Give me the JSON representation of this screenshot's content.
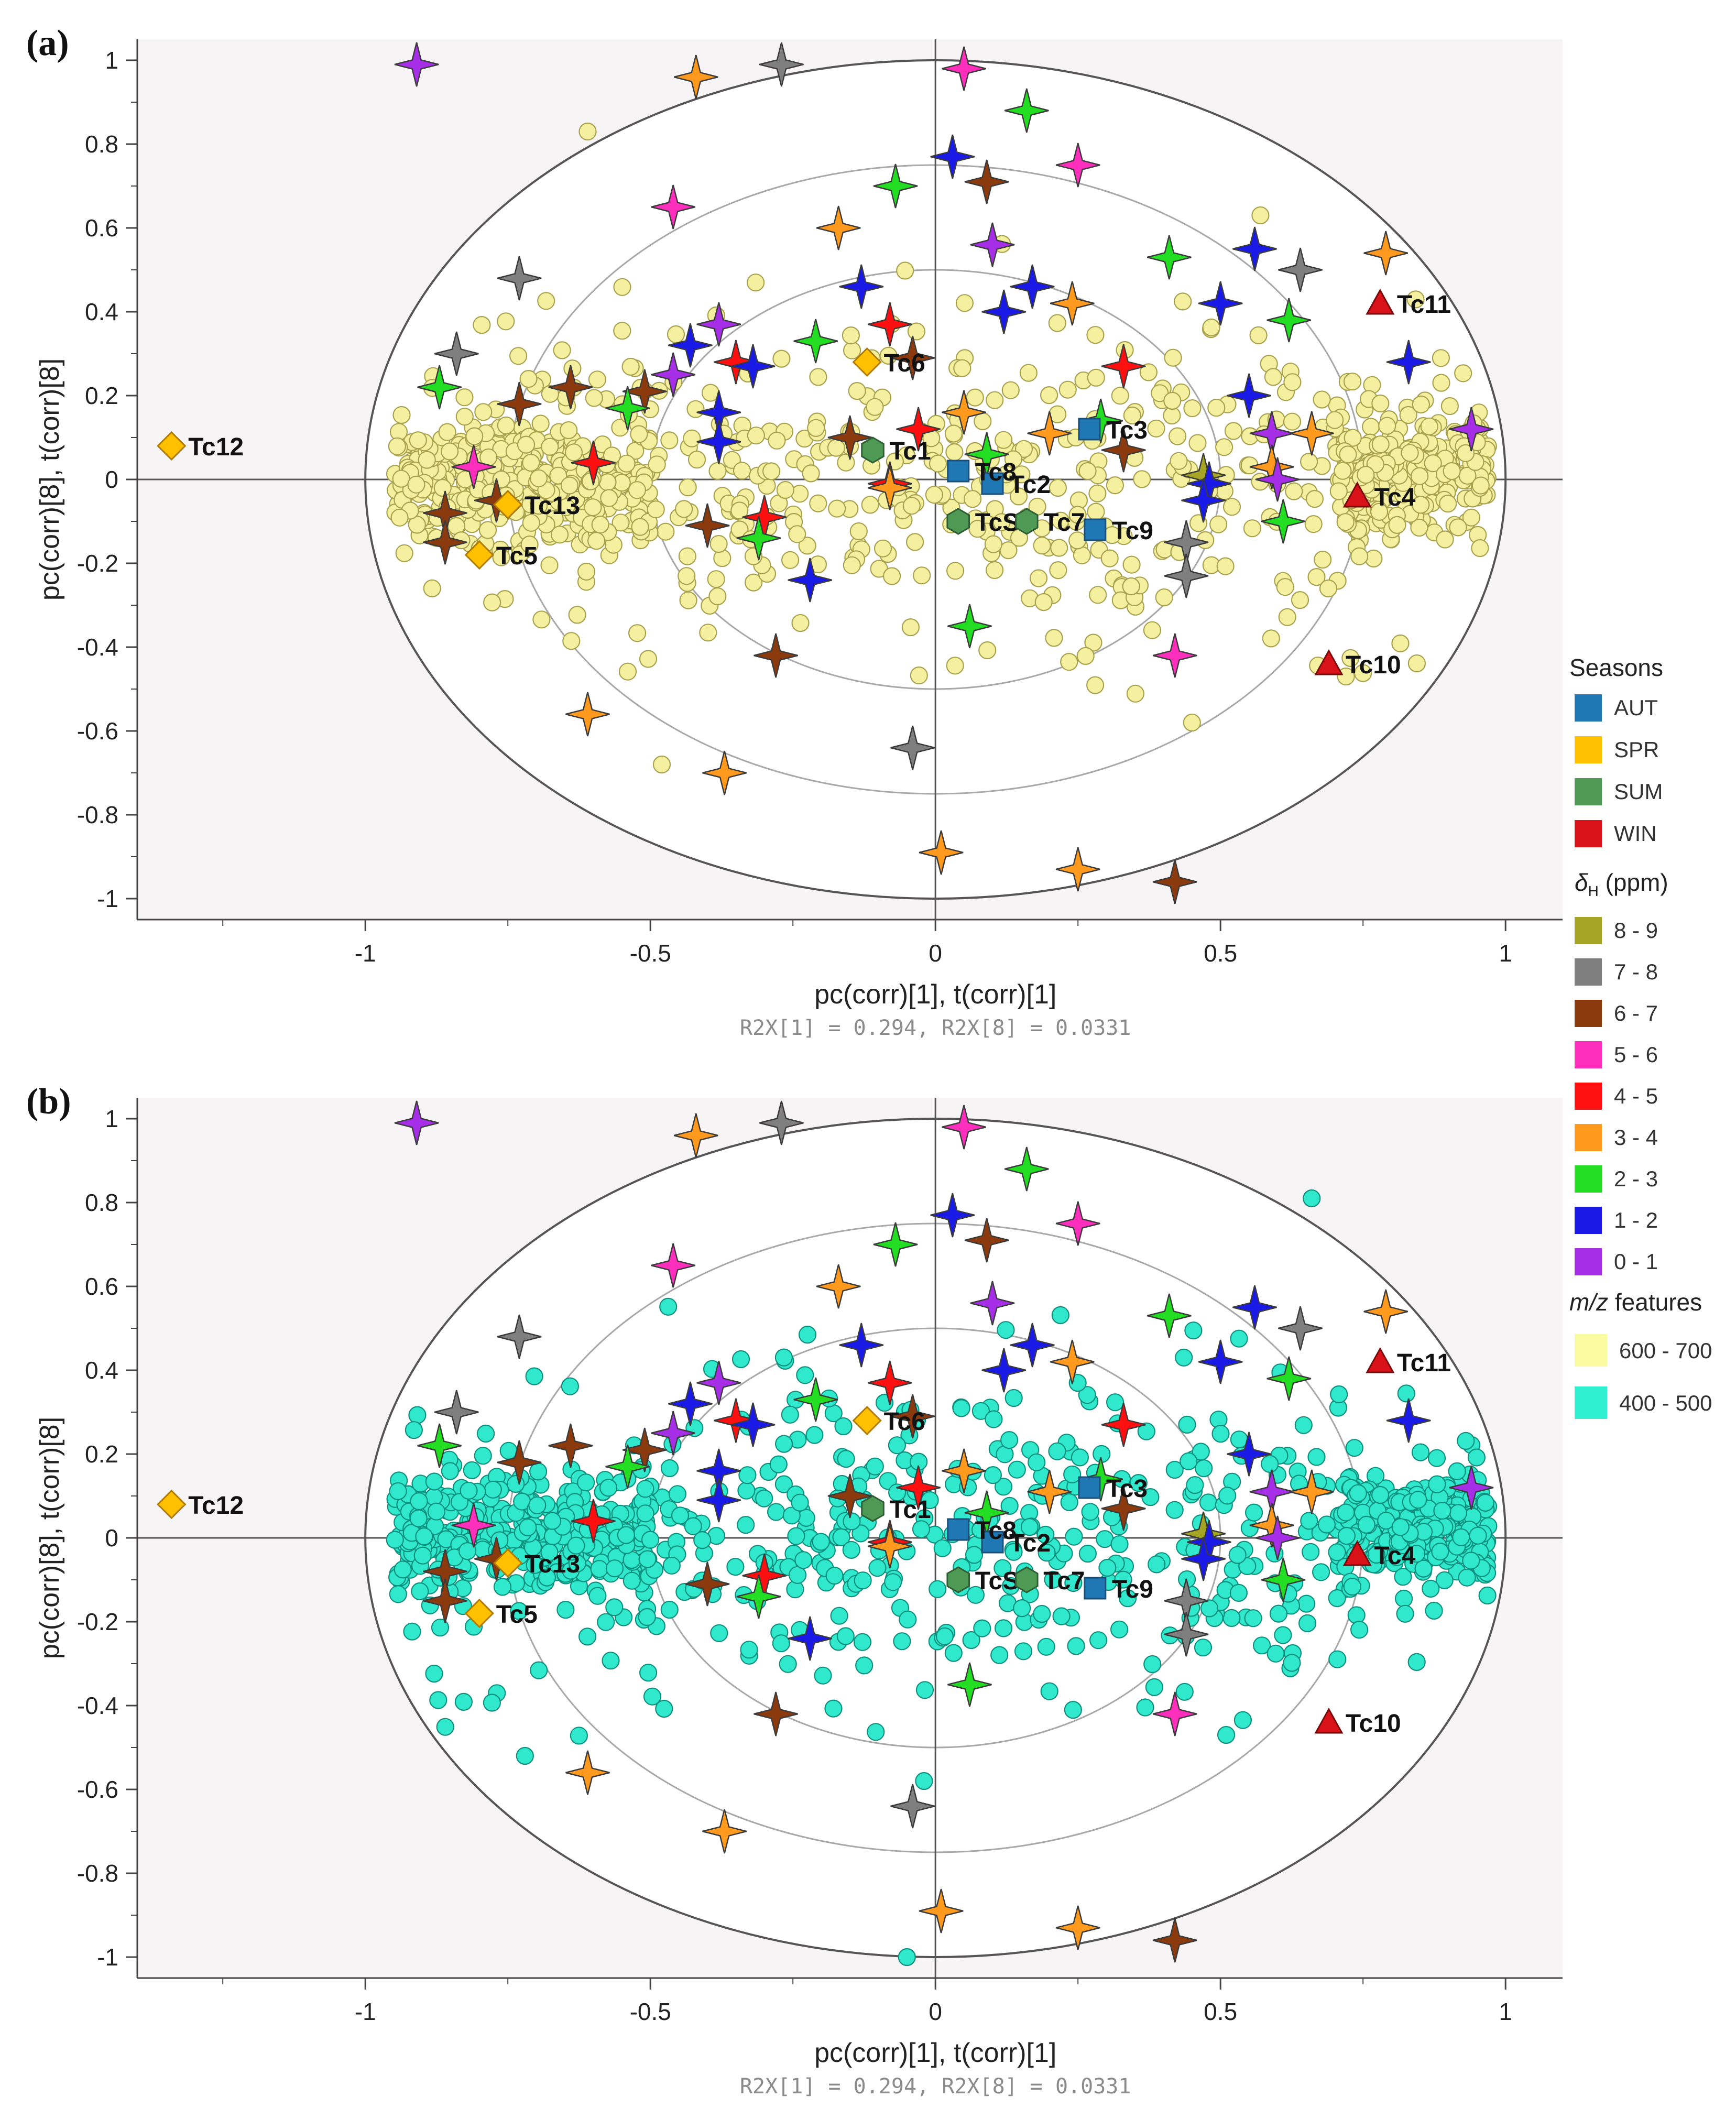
{
  "chart_data": {
    "type": "scatter",
    "title": "",
    "panels": [
      {
        "letter": "(a)",
        "xlabel": "pc(corr)[1], t(corr)[1]",
        "ylabel": "pc(corr)[8], t(corr)[8]",
        "r2x": "R2X[1] = 0.294, R2X[8] = 0.0331",
        "feature_group": "600 - 700",
        "feature_distribution": {
          "x_range": [
            -0.95,
            0.97
          ],
          "y_range": [
            -0.62,
            0.83
          ],
          "note": "dense band near y = 0, concentrated at x < -0.5 and x > 0.7"
        }
      },
      {
        "letter": "(b)",
        "xlabel": "pc(corr)[1], t(corr)[1]",
        "ylabel": "pc(corr)[8], t(corr)[8]",
        "r2x": "R2X[1] = 0.294, R2X[8] = 0.0331",
        "feature_group": "400 - 500",
        "feature_distribution": {
          "x_range": [
            -0.95,
            0.97
          ],
          "y_range": [
            -1.0,
            0.81
          ],
          "note": "dense band near y = 0, concentrated at x < -0.5 and x > 0.7"
        }
      }
    ],
    "xlim": [
      -1.4,
      1.1
    ],
    "ylim": [
      -1.05,
      1.05
    ],
    "xticks": [
      "-1",
      "-0.5",
      "0",
      "0.5",
      "1"
    ],
    "yticks": [
      "1",
      "0.8",
      "0.6",
      "0.4",
      "0.2",
      "0",
      "-0.2",
      "-0.4",
      "-0.6",
      "-0.8",
      "-1"
    ],
    "correlation_circles": [
      1.0,
      0.75,
      0.5
    ],
    "observations": [
      {
        "label": "Tc1",
        "x": -0.11,
        "y": 0.07,
        "season": "SUM"
      },
      {
        "label": "Tc2",
        "x": 0.1,
        "y": -0.01,
        "season": "AUT"
      },
      {
        "label": "Tc3",
        "x": 0.27,
        "y": 0.12,
        "season": "AUT"
      },
      {
        "label": "Tc4",
        "x": 0.74,
        "y": -0.04,
        "season": "WIN"
      },
      {
        "label": "Tc5",
        "x": -0.8,
        "y": -0.18,
        "season": "SPR"
      },
      {
        "label": "TcS",
        "x": 0.04,
        "y": -0.1,
        "season": "SUM"
      },
      {
        "label": "Tc6",
        "x": -0.12,
        "y": 0.28,
        "season": "SPR"
      },
      {
        "label": "Tc7",
        "x": 0.16,
        "y": -0.1,
        "season": "SUM"
      },
      {
        "label": "Tc8",
        "x": 0.04,
        "y": 0.02,
        "season": "AUT"
      },
      {
        "label": "Tc9",
        "x": 0.28,
        "y": -0.12,
        "season": "AUT"
      },
      {
        "label": "Tc10",
        "x": 0.69,
        "y": -0.44,
        "season": "WIN"
      },
      {
        "label": "Tc11",
        "x": 0.78,
        "y": 0.42,
        "season": "WIN"
      },
      {
        "label": "Tc12",
        "x": -1.34,
        "y": 0.08,
        "season": "SPR"
      },
      {
        "label": "Tc13",
        "x": -0.75,
        "y": -0.06,
        "season": "SPR"
      }
    ],
    "nmr_variables": [
      {
        "x": -0.91,
        "y": 0.99,
        "range": "0 - 1"
      },
      {
        "x": -0.42,
        "y": 0.96,
        "range": "3 - 4"
      },
      {
        "x": -0.27,
        "y": 0.99,
        "range": "7 - 8"
      },
      {
        "x": 0.05,
        "y": 0.98,
        "range": "5 - 6"
      },
      {
        "x": 0.16,
        "y": 0.88,
        "range": "2 - 3"
      },
      {
        "x": 0.03,
        "y": 0.77,
        "range": "1 - 2"
      },
      {
        "x": 0.09,
        "y": 0.71,
        "range": "6 - 7"
      },
      {
        "x": 0.25,
        "y": 0.75,
        "range": "5 - 6"
      },
      {
        "x": -0.07,
        "y": 0.7,
        "range": "2 - 3"
      },
      {
        "x": -0.46,
        "y": 0.65,
        "range": "5 - 6"
      },
      {
        "x": -0.17,
        "y": 0.6,
        "range": "3 - 4"
      },
      {
        "x": 0.1,
        "y": 0.56,
        "range": "0 - 1"
      },
      {
        "x": 0.41,
        "y": 0.53,
        "range": "2 - 3"
      },
      {
        "x": 0.56,
        "y": 0.55,
        "range": "1 - 2"
      },
      {
        "x": 0.64,
        "y": 0.5,
        "range": "7 - 8"
      },
      {
        "x": 0.79,
        "y": 0.54,
        "range": "3 - 4"
      },
      {
        "x": -0.73,
        "y": 0.48,
        "range": "7 - 8"
      },
      {
        "x": -0.13,
        "y": 0.46,
        "range": "1 - 2"
      },
      {
        "x": 0.17,
        "y": 0.46,
        "range": "1 - 2"
      },
      {
        "x": 0.12,
        "y": 0.4,
        "range": "1 - 2"
      },
      {
        "x": 0.24,
        "y": 0.42,
        "range": "3 - 4"
      },
      {
        "x": 0.5,
        "y": 0.42,
        "range": "1 - 2"
      },
      {
        "x": 0.62,
        "y": 0.38,
        "range": "2 - 3"
      },
      {
        "x": -0.08,
        "y": 0.37,
        "range": "4 - 5"
      },
      {
        "x": -0.38,
        "y": 0.37,
        "range": "0 - 1"
      },
      {
        "x": -0.43,
        "y": 0.32,
        "range": "1 - 2"
      },
      {
        "x": -0.21,
        "y": 0.33,
        "range": "2 - 3"
      },
      {
        "x": -0.84,
        "y": 0.3,
        "range": "7 - 8"
      },
      {
        "x": -0.04,
        "y": 0.29,
        "range": "6 - 7"
      },
      {
        "x": -0.35,
        "y": 0.28,
        "range": "4 - 5"
      },
      {
        "x": -0.32,
        "y": 0.27,
        "range": "1 - 2"
      },
      {
        "x": 0.33,
        "y": 0.27,
        "range": "4 - 5"
      },
      {
        "x": -0.46,
        "y": 0.25,
        "range": "0 - 1"
      },
      {
        "x": 0.83,
        "y": 0.28,
        "range": "1 - 2"
      },
      {
        "x": -0.64,
        "y": 0.22,
        "range": "6 - 7"
      },
      {
        "x": -0.87,
        "y": 0.22,
        "range": "2 - 3"
      },
      {
        "x": -0.51,
        "y": 0.21,
        "range": "6 - 7"
      },
      {
        "x": 0.55,
        "y": 0.2,
        "range": "1 - 2"
      },
      {
        "x": -0.73,
        "y": 0.18,
        "range": "6 - 7"
      },
      {
        "x": -0.54,
        "y": 0.17,
        "range": "2 - 3"
      },
      {
        "x": -0.38,
        "y": 0.16,
        "range": "1 - 2"
      },
      {
        "x": 0.05,
        "y": 0.16,
        "range": "3 - 4"
      },
      {
        "x": -0.03,
        "y": 0.12,
        "range": "4 - 5"
      },
      {
        "x": 0.29,
        "y": 0.14,
        "range": "2 - 3"
      },
      {
        "x": 0.2,
        "y": 0.11,
        "range": "3 - 4"
      },
      {
        "x": 0.59,
        "y": 0.11,
        "range": "0 - 1"
      },
      {
        "x": 0.66,
        "y": 0.11,
        "range": "3 - 4"
      },
      {
        "x": 0.94,
        "y": 0.12,
        "range": "0 - 1"
      },
      {
        "x": -0.38,
        "y": 0.09,
        "range": "1 - 2"
      },
      {
        "x": -0.15,
        "y": 0.1,
        "range": "6 - 7"
      },
      {
        "x": 0.33,
        "y": 0.07,
        "range": "6 - 7"
      },
      {
        "x": 0.09,
        "y": 0.06,
        "range": "2 - 3"
      },
      {
        "x": -0.6,
        "y": 0.04,
        "range": "4 - 5"
      },
      {
        "x": -0.81,
        "y": 0.03,
        "range": "5 - 6"
      },
      {
        "x": 0.59,
        "y": 0.03,
        "range": "3 - 4"
      },
      {
        "x": 0.6,
        "y": 0.0,
        "range": "0 - 1"
      },
      {
        "x": -0.08,
        "y": -0.01,
        "range": "4 - 5"
      },
      {
        "x": -0.08,
        "y": -0.02,
        "range": "3 - 4"
      },
      {
        "x": 0.47,
        "y": 0.01,
        "range": "8 - 9"
      },
      {
        "x": 0.48,
        "y": -0.01,
        "range": "1 - 2"
      },
      {
        "x": 0.47,
        "y": -0.05,
        "range": "1 - 2"
      },
      {
        "x": -0.86,
        "y": -0.08,
        "range": "6 - 7"
      },
      {
        "x": -0.77,
        "y": -0.05,
        "range": "6 - 7"
      },
      {
        "x": -0.3,
        "y": -0.09,
        "range": "4 - 5"
      },
      {
        "x": -0.4,
        "y": -0.11,
        "range": "6 - 7"
      },
      {
        "x": 0.61,
        "y": -0.1,
        "range": "2 - 3"
      },
      {
        "x": -0.86,
        "y": -0.15,
        "range": "6 - 7"
      },
      {
        "x": -0.31,
        "y": -0.14,
        "range": "2 - 3"
      },
      {
        "x": 0.44,
        "y": -0.15,
        "range": "7 - 8"
      },
      {
        "x": -0.22,
        "y": -0.24,
        "range": "1 - 2"
      },
      {
        "x": 0.44,
        "y": -0.23,
        "range": "7 - 8"
      },
      {
        "x": 0.06,
        "y": -0.35,
        "range": "2 - 3"
      },
      {
        "x": -0.28,
        "y": -0.42,
        "range": "6 - 7"
      },
      {
        "x": 0.42,
        "y": -0.42,
        "range": "5 - 6"
      },
      {
        "x": -0.61,
        "y": -0.56,
        "range": "3 - 4"
      },
      {
        "x": -0.04,
        "y": -0.64,
        "range": "7 - 8"
      },
      {
        "x": -0.37,
        "y": -0.7,
        "range": "3 - 4"
      },
      {
        "x": 0.01,
        "y": -0.89,
        "range": "3 - 4"
      },
      {
        "x": 0.25,
        "y": -0.93,
        "range": "3 - 4"
      },
      {
        "x": 0.42,
        "y": -0.96,
        "range": "6 - 7"
      }
    ]
  },
  "legend": {
    "seasons_title": "Seasons",
    "seasons": [
      {
        "label": "AUT",
        "color": "#1f77b4"
      },
      {
        "label": "SPR",
        "color": "#ffc000"
      },
      {
        "label": "SUM",
        "color": "#4e9a55"
      },
      {
        "label": "WIN",
        "color": "#d9121a"
      }
    ],
    "shift_title_symbol": "δ",
    "shift_title_sub": "H",
    "shift_title_unit": "(ppm)",
    "shifts": [
      {
        "label": "8 - 9",
        "color": "#a5a523"
      },
      {
        "label": "7 - 8",
        "color": "#7f7f7f"
      },
      {
        "label": "6 - 7",
        "color": "#8b3a0e"
      },
      {
        "label": "5 - 6",
        "color": "#ff2fbe"
      },
      {
        "label": "4 - 5",
        "color": "#ff1010"
      },
      {
        "label": "3 - 4",
        "color": "#ff9a1f"
      },
      {
        "label": "2 - 3",
        "color": "#22dd22"
      },
      {
        "label": "1 - 2",
        "color": "#1a1ae6"
      },
      {
        "label": "0 - 1",
        "color": "#a52ee6"
      }
    ],
    "features_title_italic": "m/z",
    "features_title_rest": " features",
    "features": [
      {
        "label": "600 - 700",
        "color": "#fafaa0"
      },
      {
        "label": "400 - 500",
        "color": "#2ff0d0"
      }
    ]
  },
  "colors": {
    "panel_bg": "#f6f4f5",
    "feature_a_fill": "#f5f0a0",
    "feature_a_stroke": "#a8a24e",
    "feature_b_fill": "#30e8cc",
    "feature_b_stroke": "#0f8f7d"
  }
}
